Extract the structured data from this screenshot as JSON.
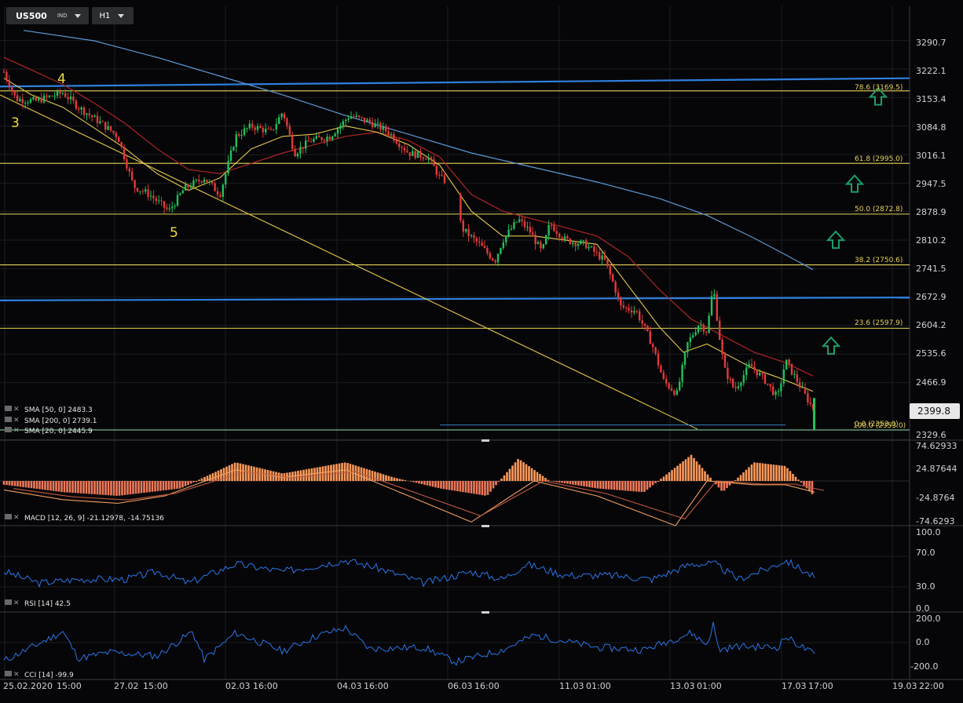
{
  "toolbar": {
    "symbol": "US500",
    "symbol_type": "IND",
    "timeframe": "H1"
  },
  "price_axis": {
    "ticks": [
      "3290.7",
      "3222.1",
      "3153.4",
      "3084.8",
      "3016.1",
      "2947.5",
      "2878.9",
      "2810.2",
      "2741.5",
      "2672.9",
      "2604.2",
      "2535.6",
      "2466.9",
      "2329.6"
    ],
    "current_price": "2399.8"
  },
  "time_axis": {
    "labels": [
      "25.02.2020",
      "15:00",
      "27.02",
      "15:00",
      "02.03",
      "16:00",
      "04.03",
      "16:00",
      "06.03",
      "16:00",
      "11.03",
      "01:00",
      "13.03",
      "01:00",
      "17.03",
      "17:00",
      "19.03",
      "22:00"
    ]
  },
  "wave_labels": [
    "4",
    "3",
    "5"
  ],
  "fibonacci": [
    {
      "label": "78.6 (3169.5)",
      "value": 3169.5
    },
    {
      "label": "61.8 (2995.0)",
      "value": 2995.0
    },
    {
      "label": "50.0 (2872.8)",
      "value": 2872.8
    },
    {
      "label": "38.2 (2750.6)",
      "value": 2750.6
    },
    {
      "label": "23.6 (2597.9)",
      "value": 2597.9
    },
    {
      "label": "0.0 (2353.0)",
      "value": 2353.0
    }
  ],
  "fib_overlap_text": "100.0 (2353.0)",
  "legends": {
    "sma50": "SMA [50, 0] 2483.3",
    "sma200": "SMA [200, 0] 2739.1",
    "sma20": "SMA [20, 0] 2445.9",
    "macd": "MACD [12, 26, 9] -21.12978, -14.75136",
    "rsi": "RSI [14] 42.5",
    "cci": "CCI [14] -99.9"
  },
  "macd_axis": [
    "74.62933",
    "24.87644",
    "-24.8764",
    "-74.6293"
  ],
  "rsi_axis": [
    "100.0",
    "70.0",
    "30.0",
    "0.0"
  ],
  "cci_axis": [
    "200.0",
    "0.0",
    "-200.0"
  ],
  "colors": {
    "background": "#060608",
    "bull": "#21c05a",
    "bear": "#e33a3a",
    "sma20": "#e8c84a",
    "sma50": "#b02525",
    "sma200": "#5b9ad6",
    "fib": "#e6d25a",
    "trend_blue": "#2f80e0",
    "trend_yellow": "#e3c848",
    "arrow": "#1f9d6a",
    "macd_hist": "#ff9a5a",
    "rsi": "#2a76e8",
    "cci": "#2a76e8"
  },
  "icons": [
    "up-arrow-icon",
    "indicator-settings-icon",
    "close-icon"
  ],
  "chart_data": {
    "type": "candlestick",
    "symbol": "US500",
    "timeframe": "H1",
    "ylim": [
      2320,
      3300
    ],
    "price_at_x": [
      [
        5,
        3215
      ],
      [
        20,
        3150
      ],
      [
        45,
        3145
      ],
      [
        80,
        3165
      ],
      [
        100,
        3130
      ],
      [
        130,
        3090
      ],
      [
        150,
        3060
      ],
      [
        170,
        2940
      ],
      [
        190,
        2920
      ],
      [
        215,
        2880
      ],
      [
        235,
        2935
      ],
      [
        260,
        2960
      ],
      [
        280,
        2920
      ],
      [
        300,
        3060
      ],
      [
        320,
        3085
      ],
      [
        345,
        3070
      ],
      [
        360,
        3120
      ],
      [
        375,
        3020
      ],
      [
        395,
        3050
      ],
      [
        420,
        3060
      ],
      [
        445,
        3110
      ],
      [
        470,
        3095
      ],
      [
        495,
        3070
      ],
      [
        520,
        3020
      ],
      [
        545,
        3010
      ],
      [
        560,
        2960
      ],
      [
        575,
        2945
      ],
      [
        583,
        2920
      ],
      [
        587,
        2840
      ],
      [
        610,
        2800
      ],
      [
        630,
        2760
      ],
      [
        640,
        2810
      ],
      [
        660,
        2860
      ],
      [
        675,
        2830
      ],
      [
        690,
        2780
      ],
      [
        700,
        2850
      ],
      [
        720,
        2810
      ],
      [
        745,
        2800
      ],
      [
        770,
        2760
      ],
      [
        782,
        2700
      ],
      [
        790,
        2650
      ],
      [
        810,
        2640
      ],
      [
        830,
        2560
      ],
      [
        845,
        2470
      ],
      [
        862,
        2440
      ],
      [
        875,
        2560
      ],
      [
        890,
        2610
      ],
      [
        900,
        2590
      ],
      [
        908,
        2700
      ],
      [
        915,
        2590
      ],
      [
        922,
        2500
      ],
      [
        935,
        2450
      ],
      [
        955,
        2510
      ],
      [
        975,
        2470
      ],
      [
        990,
        2430
      ],
      [
        1000,
        2520
      ],
      [
        1015,
        2470
      ],
      [
        1030,
        2420
      ],
      [
        1037,
        2400
      ]
    ],
    "sma20": [
      [
        5,
        3200
      ],
      [
        40,
        3160
      ],
      [
        80,
        3130
      ],
      [
        120,
        3080
      ],
      [
        160,
        3030
      ],
      [
        200,
        2970
      ],
      [
        240,
        2930
      ],
      [
        280,
        2960
      ],
      [
        320,
        3030
      ],
      [
        360,
        3060
      ],
      [
        400,
        3065
      ],
      [
        440,
        3085
      ],
      [
        480,
        3070
      ],
      [
        520,
        3040
      ],
      [
        560,
        2990
      ],
      [
        600,
        2880
      ],
      [
        640,
        2820
      ],
      [
        680,
        2820
      ],
      [
        720,
        2810
      ],
      [
        760,
        2800
      ],
      [
        800,
        2700
      ],
      [
        840,
        2600
      ],
      [
        870,
        2540
      ],
      [
        900,
        2560
      ],
      [
        930,
        2530
      ],
      [
        960,
        2500
      ],
      [
        990,
        2480
      ],
      [
        1010,
        2465
      ],
      [
        1035,
        2446
      ]
    ],
    "sma50": [
      [
        5,
        3250
      ],
      [
        40,
        3220
      ],
      [
        80,
        3185
      ],
      [
        120,
        3140
      ],
      [
        160,
        3090
      ],
      [
        200,
        3030
      ],
      [
        240,
        2980
      ],
      [
        280,
        2970
      ],
      [
        320,
        2995
      ],
      [
        360,
        3020
      ],
      [
        400,
        3040
      ],
      [
        440,
        3060
      ],
      [
        480,
        3070
      ],
      [
        520,
        3050
      ],
      [
        560,
        3010
      ],
      [
        600,
        2920
      ],
      [
        640,
        2880
      ],
      [
        680,
        2860
      ],
      [
        720,
        2840
      ],
      [
        760,
        2820
      ],
      [
        800,
        2770
      ],
      [
        840,
        2690
      ],
      [
        880,
        2620
      ],
      [
        920,
        2580
      ],
      [
        960,
        2540
      ],
      [
        1000,
        2515
      ],
      [
        1035,
        2483
      ]
    ],
    "sma200": [
      [
        30,
        3315
      ],
      [
        120,
        3290
      ],
      [
        200,
        3250
      ],
      [
        280,
        3205
      ],
      [
        360,
        3160
      ],
      [
        440,
        3110
      ],
      [
        520,
        3065
      ],
      [
        600,
        3020
      ],
      [
        680,
        2985
      ],
      [
        760,
        2950
      ],
      [
        840,
        2910
      ],
      [
        900,
        2870
      ],
      [
        960,
        2815
      ],
      [
        1000,
        2775
      ],
      [
        1035,
        2739
      ]
    ],
    "macd": {
      "hist": [
        [
          5,
          -5
        ],
        [
          80,
          -15
        ],
        [
          150,
          -20
        ],
        [
          230,
          -10
        ],
        [
          300,
          25
        ],
        [
          360,
          10
        ],
        [
          440,
          25
        ],
        [
          500,
          5
        ],
        [
          560,
          -10
        ],
        [
          620,
          -20
        ],
        [
          660,
          30
        ],
        [
          700,
          0
        ],
        [
          760,
          -10
        ],
        [
          820,
          -15
        ],
        [
          880,
          35
        ],
        [
          920,
          -15
        ],
        [
          960,
          25
        ],
        [
          1000,
          20
        ],
        [
          1037,
          -21
        ]
      ],
      "lines": [
        [
          5,
          -12
        ],
        [
          80,
          -25
        ],
        [
          150,
          -30
        ],
        [
          210,
          -20
        ],
        [
          300,
          15
        ],
        [
          360,
          5
        ],
        [
          440,
          15
        ],
        [
          520,
          -20
        ],
        [
          600,
          -55
        ],
        [
          680,
          0
        ],
        [
          760,
          -20
        ],
        [
          860,
          -60
        ],
        [
          900,
          0
        ],
        [
          960,
          -5
        ],
        [
          1000,
          -5
        ],
        [
          1037,
          -15
        ]
      ]
    },
    "rsi": [
      [
        5,
        50
      ],
      [
        50,
        35
      ],
      [
        100,
        40
      ],
      [
        160,
        40
      ],
      [
        200,
        50
      ],
      [
        240,
        35
      ],
      [
        300,
        60
      ],
      [
        360,
        50
      ],
      [
        440,
        65
      ],
      [
        480,
        55
      ],
      [
        540,
        35
      ],
      [
        600,
        50
      ],
      [
        640,
        40
      ],
      [
        670,
        60
      ],
      [
        720,
        45
      ],
      [
        780,
        45
      ],
      [
        830,
        40
      ],
      [
        880,
        60
      ],
      [
        910,
        60
      ],
      [
        940,
        40
      ],
      [
        980,
        55
      ],
      [
        1000,
        65
      ],
      [
        1037,
        42.5
      ]
    ],
    "cci": [
      [
        5,
        -150
      ],
      [
        40,
        -40
      ],
      [
        80,
        90
      ],
      [
        100,
        -130
      ],
      [
        140,
        -80
      ],
      [
        200,
        -110
      ],
      [
        245,
        90
      ],
      [
        260,
        -140
      ],
      [
        300,
        80
      ],
      [
        360,
        -70
      ],
      [
        405,
        60
      ],
      [
        440,
        120
      ],
      [
        470,
        -50
      ],
      [
        540,
        -40
      ],
      [
        580,
        -160
      ],
      [
        640,
        -60
      ],
      [
        680,
        60
      ],
      [
        760,
        -40
      ],
      [
        820,
        -60
      ],
      [
        880,
        80
      ],
      [
        900,
        -20
      ],
      [
        908,
        150
      ],
      [
        915,
        -60
      ],
      [
        940,
        -30
      ],
      [
        990,
        -40
      ],
      [
        1000,
        50
      ],
      [
        1037,
        -100
      ]
    ]
  }
}
